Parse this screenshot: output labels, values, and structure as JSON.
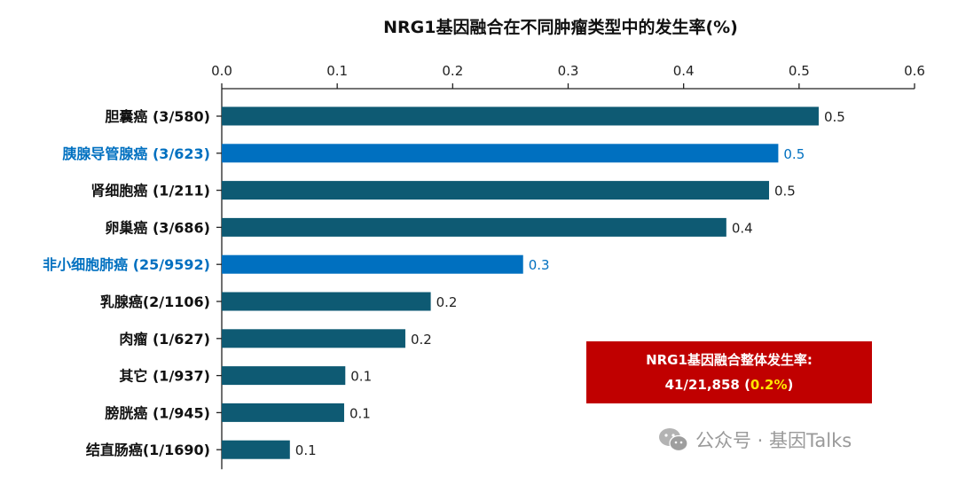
{
  "chart_data": {
    "type": "bar",
    "orientation": "horizontal",
    "title": "NRG1基因融合在不同肿瘤类型中的发生率(%)",
    "xaxis_position": "top",
    "xlim": [
      0,
      0.6
    ],
    "xticks": [
      "0.0",
      "0.1",
      "0.2",
      "0.3",
      "0.4",
      "0.5",
      "0.6"
    ],
    "categories": [
      "胆囊癌 (3/580)",
      "胰腺导管腺癌 (3/623)",
      "肾细胞癌 (1/211)",
      "卵巢癌 (3/686)",
      "非小细胞肺癌 (25/9592)",
      "乳腺癌(2/1106)",
      "肉瘤 (1/627)",
      "其它 (1/937)",
      "膀胱癌 (1/945)",
      "结直肠癌(1/1690)"
    ],
    "values": [
      0.517,
      0.482,
      0.474,
      0.437,
      0.261,
      0.181,
      0.159,
      0.107,
      0.106,
      0.059
    ],
    "value_labels": [
      "0.5",
      "0.5",
      "0.5",
      "0.4",
      "0.3",
      "0.2",
      "0.2",
      "0.1",
      "0.1",
      "0.1"
    ],
    "highlighted": [
      false,
      true,
      false,
      false,
      true,
      false,
      false,
      false,
      false,
      false
    ],
    "colors": {
      "default": "#0e5a73",
      "highlight": "#0070c0",
      "text": "#111111"
    },
    "grid": false,
    "legend": "none"
  },
  "summary": {
    "title": "NRG1基因融合整体发生率:",
    "value": "41/21,858",
    "open": " (",
    "pct": "0.2%",
    "close": ")",
    "bg_color": "#c00000",
    "highlight_color": "#ffe600"
  },
  "watermark": {
    "text": "公众号 · 基因Talks",
    "icon": "wechat-icon"
  }
}
